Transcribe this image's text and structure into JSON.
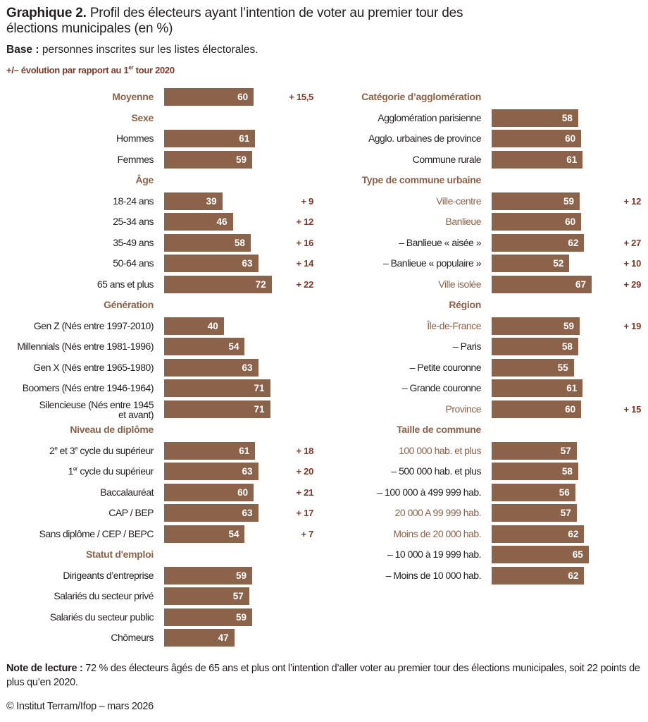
{
  "title": {
    "prefix": "Graphique 2.",
    "text": "Profil des électeurs ayant l’intention de voter au premier tour des élections municipales (en %)"
  },
  "base": {
    "label": "Base :",
    "text": "personnes inscrites sur les listes électorales."
  },
  "evolution_legend": {
    "before": "+/– évolution par rapport au 1",
    "sup": "er",
    "after": " tour 2020"
  },
  "colors": {
    "bar": "#8b634a",
    "header": "#8b634a",
    "delta": "#7a3a2a",
    "text": "#231f20"
  },
  "chart_data": {
    "type": "bar",
    "orientation": "horizontal",
    "title": "Profil des électeurs ayant l’intention de voter au premier tour des élections municipales (en %)",
    "unit": "%",
    "xlim": [
      0,
      100
    ],
    "grid": false,
    "columns": [
      {
        "rows": [
          {
            "kind": "header",
            "label": "Moyenne",
            "value": 60,
            "delta": "+ 15,5"
          },
          {
            "kind": "header",
            "label": "Sexe"
          },
          {
            "kind": "item",
            "label": "Hommes",
            "value": 61
          },
          {
            "kind": "item",
            "label": "Femmes",
            "value": 59
          },
          {
            "kind": "header",
            "label": "Âge"
          },
          {
            "kind": "item",
            "label": "18-24 ans",
            "value": 39,
            "delta": "+ 9"
          },
          {
            "kind": "item",
            "label": "25-34 ans",
            "value": 46,
            "delta": "+ 12"
          },
          {
            "kind": "item",
            "label": "35-49 ans",
            "value": 58,
            "delta": "+ 16"
          },
          {
            "kind": "item",
            "label": "50-64 ans",
            "value": 63,
            "delta": "+ 14"
          },
          {
            "kind": "item",
            "label": "65 ans et plus",
            "value": 72,
            "delta": "+ 22"
          },
          {
            "kind": "header",
            "label": "Génération"
          },
          {
            "kind": "item",
            "label": "Gen Z (Nés entre 1997-2010)",
            "value": 40
          },
          {
            "kind": "item",
            "label": "Millennials (Nés entre 1981-1996)",
            "value": 54
          },
          {
            "kind": "item",
            "label": "Gen X (Nés entre 1965-1980)",
            "value": 63
          },
          {
            "kind": "item",
            "label": "Boomers (Nés entre 1946-1964)",
            "value": 71
          },
          {
            "kind": "item",
            "label": "Silencieuse (Nés entre 1945",
            "label2": "et avant)",
            "value": 71
          },
          {
            "kind": "header",
            "label": "Niveau de diplôme"
          },
          {
            "kind": "item",
            "label": "2e et 3e cycle du supérieur",
            "value": 61,
            "delta": "+ 18"
          },
          {
            "kind": "item",
            "label": "1er cycle du supérieur",
            "value": 63,
            "delta": "+ 20"
          },
          {
            "kind": "item",
            "label": "Baccalauréat",
            "value": 60,
            "delta": "+ 21"
          },
          {
            "kind": "item",
            "label": "CAP / BEP",
            "value": 63,
            "delta": "+ 17"
          },
          {
            "kind": "item",
            "label": "Sans diplôme / CEP / BEPC",
            "value": 54,
            "delta": "+ 7"
          },
          {
            "kind": "header",
            "label": "Statut d'emploi"
          },
          {
            "kind": "item",
            "label": "Dirigeants d’entreprise",
            "value": 59
          },
          {
            "kind": "item",
            "label": "Salariés du secteur privé",
            "value": 57
          },
          {
            "kind": "item",
            "label": "Salariés du secteur public",
            "value": 59
          },
          {
            "kind": "item",
            "label": "Chômeurs",
            "value": 47
          }
        ]
      },
      {
        "rows": [
          {
            "kind": "header",
            "label": "Catégorie d’agglomération"
          },
          {
            "kind": "item",
            "label": "Agglomération parisienne",
            "value": 58
          },
          {
            "kind": "item",
            "label": "Agglo. urbaines de province",
            "value": 60
          },
          {
            "kind": "item",
            "label": "Commune rurale",
            "value": 61
          },
          {
            "kind": "header",
            "label": "Type de commune urbaine"
          },
          {
            "kind": "accent",
            "label": "Ville-centre",
            "value": 59,
            "delta": "+ 12"
          },
          {
            "kind": "accent",
            "label": "Banlieue",
            "value": 60
          },
          {
            "kind": "item",
            "label": "– Banlieue « aisée »",
            "value": 62,
            "delta": "+ 27"
          },
          {
            "kind": "item",
            "label": "– Banlieue « populaire »",
            "value": 52,
            "delta": "+ 10"
          },
          {
            "kind": "accent",
            "label": "Ville isolée",
            "value": 67,
            "delta": "+ 29"
          },
          {
            "kind": "header",
            "label": "Région"
          },
          {
            "kind": "accent",
            "label": "Île-de-France",
            "value": 59,
            "delta": "+ 19"
          },
          {
            "kind": "item",
            "label": "– Paris",
            "value": 58
          },
          {
            "kind": "item",
            "label": "– Petite couronne",
            "value": 55
          },
          {
            "kind": "item",
            "label": "– Grande couronne",
            "value": 61
          },
          {
            "kind": "accent",
            "label": "Province",
            "value": 60,
            "delta": "+ 15"
          },
          {
            "kind": "header",
            "label": "Taille de commune"
          },
          {
            "kind": "accent",
            "label": "100 000 hab. et plus",
            "value": 57
          },
          {
            "kind": "item",
            "label": "– 500 000 hab. et plus",
            "value": 58
          },
          {
            "kind": "item",
            "label": "– 100 000 à 499 999 hab.",
            "value": 56
          },
          {
            "kind": "accent",
            "label": "20 000 A 99 999 hab.",
            "value": 57
          },
          {
            "kind": "accent",
            "label": "Moins de 20 000 hab.",
            "value": 62
          },
          {
            "kind": "item",
            "label": "– 10 000 à 19 999 hab.",
            "value": 65
          },
          {
            "kind": "item",
            "label": "– Moins de 10 000 hab.",
            "value": 62
          }
        ]
      }
    ]
  },
  "note": {
    "label": "Note de lecture :",
    "text": "72 % des électeurs âgés de 65 ans et plus ont l’intention d’aller voter au premier tour des élections municipales, soit 22 points de plus qu’en 2020."
  },
  "copyright": "© Institut Terram/Ifop – mars 2026"
}
